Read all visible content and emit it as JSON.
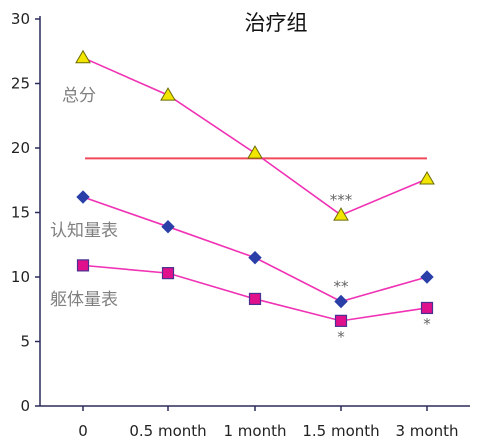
{
  "chart_data": {
    "type": "line",
    "title": "治疗组",
    "categories": [
      "0",
      "0.5 month",
      "1 month",
      "1.5 month",
      "3 month"
    ],
    "ylim": [
      0,
      30
    ],
    "yticks": [
      "0",
      "5",
      "10",
      "15",
      "20",
      "25",
      "30"
    ],
    "grid": false,
    "reference_line": {
      "value": 19.2,
      "color": "#f04a5a"
    },
    "series": [
      {
        "name": "总分",
        "values": [
          27.0,
          24.1,
          19.6,
          14.8,
          17.6
        ],
        "marker": "triangle",
        "line_color": "#f032b4",
        "marker_fill": "#f2e600",
        "marker_stroke": "#6b6b00",
        "annotations": [
          "",
          "",
          "",
          "***",
          ""
        ]
      },
      {
        "name": "认知量表",
        "values": [
          16.2,
          13.9,
          11.5,
          8.1,
          10.0
        ],
        "marker": "diamond",
        "line_color": "#f032b4",
        "marker_fill": "#2a3fa8",
        "marker_stroke": "#2a3fa8",
        "annotations": [
          "",
          "",
          "",
          "**",
          ""
        ]
      },
      {
        "name": "躯体量表",
        "values": [
          10.9,
          10.3,
          8.3,
          6.6,
          7.6
        ],
        "marker": "square",
        "line_color": "#f032b4",
        "marker_fill": "#e0108c",
        "marker_stroke": "#4a3090",
        "annotations": [
          "",
          "",
          "",
          "*",
          "*"
        ]
      }
    ]
  },
  "colors": {
    "axis": "#2b2b5a",
    "background": "#ffffff"
  }
}
